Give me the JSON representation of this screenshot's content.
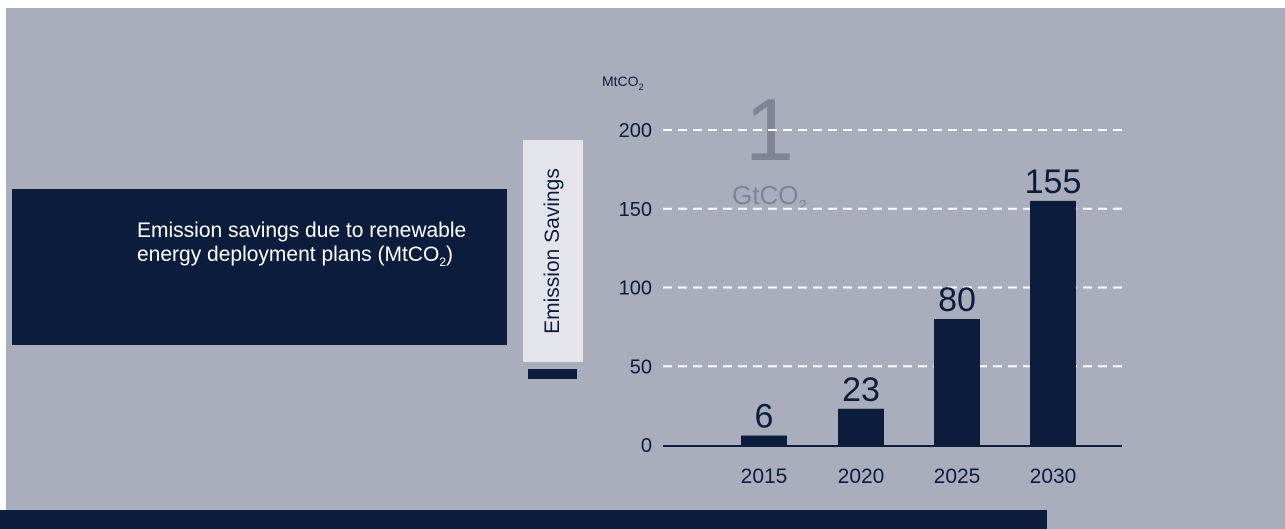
{
  "title": {
    "main": "Emission savings due to renewable energy deployment plans (MtCO",
    "sub": "2",
    "close": ")"
  },
  "legend": {
    "label": "Emission Savings"
  },
  "unit": {
    "main": "MtCO",
    "sub": "2"
  },
  "highlight": {
    "number": "1",
    "unit_main": "GtCO",
    "unit_sub": "2"
  },
  "colors": {
    "bar": "#0b1c3d",
    "background": "#aaadbb",
    "grid": "#ffffff",
    "highlight": "#7f8597"
  },
  "chart_data": {
    "type": "bar",
    "categories": [
      "2015",
      "2020",
      "2025",
      "2030"
    ],
    "values": [
      6,
      23,
      80,
      155
    ],
    "value_labels": [
      "6",
      "23",
      "80",
      "155"
    ],
    "ylim": [
      0,
      200
    ],
    "yticks": [
      0,
      50,
      100,
      150,
      200
    ],
    "grid": true,
    "grid_style": "dashed",
    "legend_placement": "left"
  }
}
